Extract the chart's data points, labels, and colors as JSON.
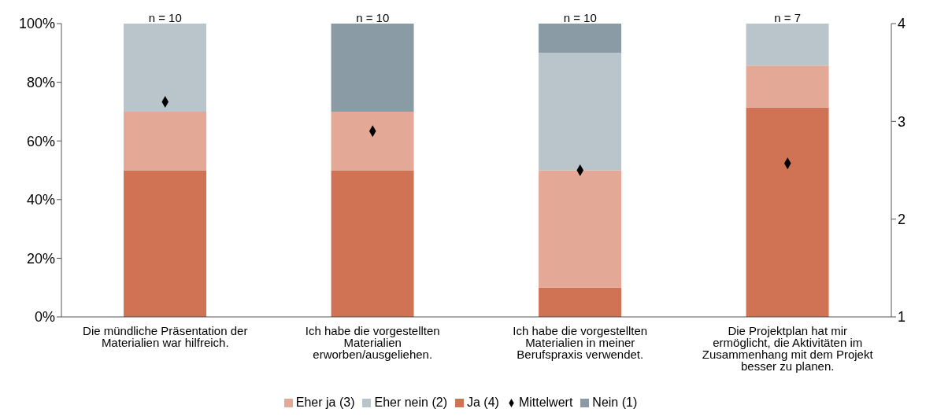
{
  "chart_data": {
    "type": "bar",
    "stacked": true,
    "categories": [
      "Die mündliche Präsentation der Materialien war hilfreich.",
      "Ich habe die vorgestellten Materialien erworben/ausgeliehen.",
      "Ich habe die vorgestellten Materialien in meiner Berufspraxis verwendet.",
      "Die Projektplan hat mir ermöglicht, die Aktivitäten im Zusammenhang mit dem Projekt besser zu planen."
    ],
    "series": [
      {
        "name": "Ja (4)",
        "color": "#d07254",
        "values": [
          50,
          50,
          10,
          71.4
        ]
      },
      {
        "name": "Eher ja (3)",
        "color": "#e3a996",
        "values": [
          20,
          20,
          40,
          14.3
        ]
      },
      {
        "name": "Eher nein (2)",
        "color": "#b9c5cb",
        "values": [
          30,
          0,
          40,
          14.3
        ]
      },
      {
        "name": "Nein (1)",
        "color": "#8a9ba5",
        "values": [
          0,
          30,
          10,
          0
        ]
      },
      {
        "name": "Mittelwert",
        "type": "scatter",
        "axis": "y2",
        "color": "#000000",
        "marker": "diamond",
        "values": [
          3.2,
          2.9,
          2.5,
          2.57
        ]
      }
    ],
    "ylim": [
      0,
      100
    ],
    "yticks": [
      {
        "value": 0,
        "label": "0%"
      },
      {
        "value": 20,
        "label": "20%"
      },
      {
        "value": 40,
        "label": "40%"
      },
      {
        "value": 60,
        "label": "60%"
      },
      {
        "value": 80,
        "label": "80%"
      },
      {
        "value": 100,
        "label": "100%"
      }
    ],
    "y2lim": [
      1,
      4
    ],
    "y2ticks": [
      1,
      2,
      3,
      4
    ],
    "annotations": [
      {
        "text": "n = 10",
        "x": "Die mündliche Präsentation der Materialien war hilfreich.",
        "y": 100
      },
      {
        "text": "n = 10",
        "x": "Ich habe die vorgestellten Materialien erworben/ausgeliehen.",
        "y": 100
      },
      {
        "text": "n = 10",
        "x": "Ich habe die vorgestellten Materialien in meiner Berufspraxis verwendet.",
        "y": 100
      },
      {
        "text": "n = 7",
        "x": "Die Projektplan hat mir ermöglicht, die Aktivitäten im Zusammenhang mit dem Projekt besser zu planen.",
        "y": 100
      }
    ],
    "grid": false,
    "legend": "bottom"
  }
}
